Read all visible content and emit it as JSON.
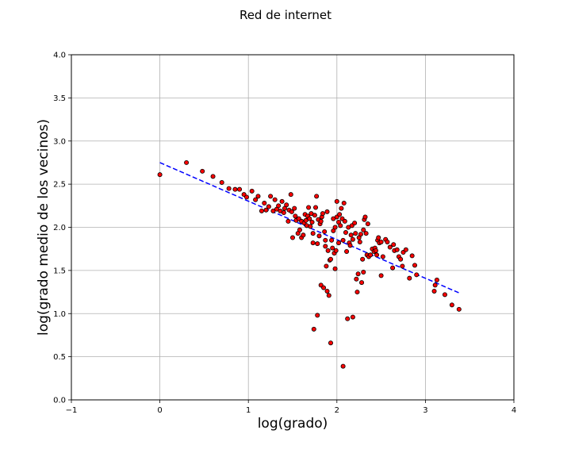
{
  "chart_data": {
    "type": "scatter",
    "title": "Red de internet",
    "xlabel": "log(grado)",
    "ylabel": "log(grado medio de los vecinos)",
    "xlim": [
      -1,
      4
    ],
    "ylim": [
      0,
      4
    ],
    "xticks": [
      -1,
      0,
      1,
      2,
      3,
      4
    ],
    "xtick_labels": [
      "−1",
      "0",
      "1",
      "2",
      "3",
      "4"
    ],
    "yticks": [
      0.0,
      0.5,
      1.0,
      1.5,
      2.0,
      2.5,
      3.0,
      3.5,
      4.0
    ],
    "ytick_labels": [
      "0.0",
      "0.5",
      "1.0",
      "1.5",
      "2.0",
      "2.5",
      "3.0",
      "3.5",
      "4.0"
    ],
    "grid": true,
    "colors": {
      "point_fill": "#ff0000",
      "point_edge": "#000000",
      "fit_line": "#0000ff"
    },
    "fit_line": {
      "x": [
        0.0,
        3.38
      ],
      "y": [
        2.75,
        1.24
      ],
      "style": "dashed"
    },
    "points": [
      [
        0.0,
        2.61
      ],
      [
        0.3,
        2.75
      ],
      [
        0.48,
        2.65
      ],
      [
        0.6,
        2.59
      ],
      [
        0.7,
        2.52
      ],
      [
        0.78,
        2.45
      ],
      [
        0.85,
        2.44
      ],
      [
        0.9,
        2.44
      ],
      [
        0.95,
        2.38
      ],
      [
        0.98,
        2.35
      ],
      [
        1.04,
        2.42
      ],
      [
        1.08,
        2.32
      ],
      [
        1.11,
        2.36
      ],
      [
        1.15,
        2.19
      ],
      [
        1.18,
        2.28
      ],
      [
        1.2,
        2.2
      ],
      [
        1.23,
        2.24
      ],
      [
        1.25,
        2.36
      ],
      [
        1.28,
        2.19
      ],
      [
        1.3,
        2.32
      ],
      [
        1.32,
        2.21
      ],
      [
        1.34,
        2.25
      ],
      [
        1.36,
        2.19
      ],
      [
        1.38,
        2.3
      ],
      [
        1.4,
        2.17
      ],
      [
        1.41,
        2.22
      ],
      [
        1.43,
        2.26
      ],
      [
        1.45,
        2.07
      ],
      [
        1.46,
        2.2
      ],
      [
        1.48,
        2.38
      ],
      [
        1.49,
        2.18
      ],
      [
        1.5,
        1.88
      ],
      [
        1.52,
        2.22
      ],
      [
        1.53,
        2.13
      ],
      [
        1.54,
        2.08
      ],
      [
        1.56,
        1.93
      ],
      [
        1.57,
        2.1
      ],
      [
        1.58,
        1.97
      ],
      [
        1.6,
        2.07
      ],
      [
        1.6,
        1.88
      ],
      [
        1.62,
        1.91
      ],
      [
        1.63,
        2.05
      ],
      [
        1.64,
        2.15
      ],
      [
        1.65,
        2.08
      ],
      [
        1.66,
        2.02
      ],
      [
        1.67,
        2.13
      ],
      [
        1.68,
        2.23
      ],
      [
        1.69,
        2.1
      ],
      [
        1.7,
        2.01
      ],
      [
        1.71,
        2.16
      ],
      [
        1.72,
        2.06
      ],
      [
        1.73,
        1.82
      ],
      [
        1.73,
        1.93
      ],
      [
        1.74,
        0.82
      ],
      [
        1.75,
        2.14
      ],
      [
        1.76,
        2.23
      ],
      [
        1.77,
        2.36
      ],
      [
        1.78,
        1.81
      ],
      [
        1.78,
        0.98
      ],
      [
        1.79,
        2.09
      ],
      [
        1.8,
        1.9
      ],
      [
        1.81,
        2.04
      ],
      [
        1.82,
        2.07
      ],
      [
        1.82,
        1.33
      ],
      [
        1.83,
        2.12
      ],
      [
        1.84,
        2.16
      ],
      [
        1.85,
        1.3
      ],
      [
        1.86,
        1.95
      ],
      [
        1.87,
        1.78
      ],
      [
        1.87,
        1.85
      ],
      [
        1.88,
        1.55
      ],
      [
        1.89,
        2.18
      ],
      [
        1.89,
        1.26
      ],
      [
        1.9,
        1.73
      ],
      [
        1.91,
        1.21
      ],
      [
        1.92,
        1.62
      ],
      [
        1.93,
        1.63
      ],
      [
        1.93,
        0.66
      ],
      [
        1.94,
        1.85
      ],
      [
        1.95,
        1.76
      ],
      [
        1.96,
        2.1
      ],
      [
        1.96,
        1.96
      ],
      [
        1.97,
        1.7
      ],
      [
        1.98,
        2.0
      ],
      [
        1.98,
        1.52
      ],
      [
        1.99,
        1.73
      ],
      [
        2.0,
        2.12
      ],
      [
        2.0,
        2.3
      ],
      [
        2.02,
        2.06
      ],
      [
        2.02,
        1.82
      ],
      [
        2.03,
        2.15
      ],
      [
        2.04,
        2.02
      ],
      [
        2.05,
        2.22
      ],
      [
        2.06,
        2.1
      ],
      [
        2.07,
        1.85
      ],
      [
        2.07,
        0.39
      ],
      [
        2.08,
        2.28
      ],
      [
        2.09,
        2.07
      ],
      [
        2.1,
        1.94
      ],
      [
        2.11,
        1.72
      ],
      [
        2.12,
        0.94
      ],
      [
        2.13,
        2.0
      ],
      [
        2.14,
        1.82
      ],
      [
        2.15,
        1.79
      ],
      [
        2.16,
        1.91
      ],
      [
        2.17,
        2.02
      ],
      [
        2.18,
        1.86
      ],
      [
        2.18,
        0.96
      ],
      [
        2.2,
        2.05
      ],
      [
        2.21,
        1.93
      ],
      [
        2.22,
        1.4
      ],
      [
        2.23,
        1.25
      ],
      [
        2.24,
        1.46
      ],
      [
        2.25,
        1.88
      ],
      [
        2.26,
        1.83
      ],
      [
        2.27,
        1.92
      ],
      [
        2.28,
        1.36
      ],
      [
        2.29,
        1.63
      ],
      [
        2.3,
        1.97
      ],
      [
        2.3,
        1.48
      ],
      [
        2.31,
        2.09
      ],
      [
        2.32,
        2.12
      ],
      [
        2.33,
        1.93
      ],
      [
        2.34,
        1.68
      ],
      [
        2.35,
        2.04
      ],
      [
        2.36,
        1.66
      ],
      [
        2.38,
        1.68
      ],
      [
        2.4,
        1.75
      ],
      [
        2.42,
        1.72
      ],
      [
        2.43,
        1.76
      ],
      [
        2.44,
        1.73
      ],
      [
        2.45,
        1.68
      ],
      [
        2.46,
        1.85
      ],
      [
        2.47,
        1.88
      ],
      [
        2.48,
        1.82
      ],
      [
        2.5,
        1.44
      ],
      [
        2.5,
        1.83
      ],
      [
        2.52,
        1.66
      ],
      [
        2.55,
        1.86
      ],
      [
        2.57,
        1.83
      ],
      [
        2.6,
        1.77
      ],
      [
        2.63,
        1.53
      ],
      [
        2.64,
        1.8
      ],
      [
        2.65,
        1.73
      ],
      [
        2.68,
        1.74
      ],
      [
        2.7,
        1.66
      ],
      [
        2.72,
        1.63
      ],
      [
        2.74,
        1.55
      ],
      [
        2.75,
        1.71
      ],
      [
        2.78,
        1.74
      ],
      [
        2.82,
        1.41
      ],
      [
        2.85,
        1.67
      ],
      [
        2.88,
        1.56
      ],
      [
        2.9,
        1.45
      ],
      [
        3.1,
        1.26
      ],
      [
        3.11,
        1.33
      ],
      [
        3.13,
        1.39
      ],
      [
        3.22,
        1.22
      ],
      [
        3.3,
        1.1
      ],
      [
        3.38,
        1.05
      ]
    ]
  }
}
